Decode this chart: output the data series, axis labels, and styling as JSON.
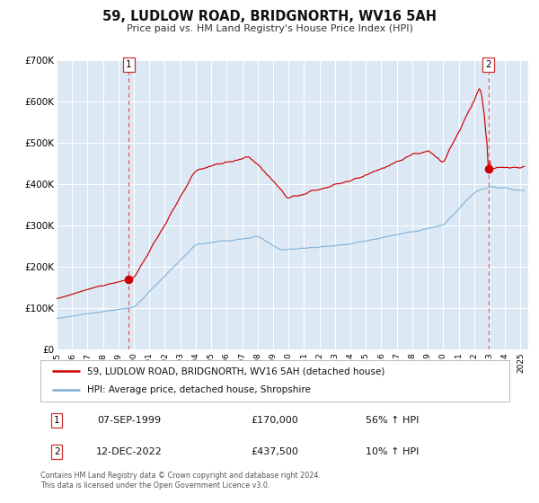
{
  "title": "59, LUDLOW ROAD, BRIDGNORTH, WV16 5AH",
  "subtitle": "Price paid vs. HM Land Registry's House Price Index (HPI)",
  "bg_color": "#dce9f5",
  "fig_bg_color": "#ffffff",
  "red_line_color": "#cc0000",
  "blue_line_color": "#7aaed6",
  "red_dot_color": "#cc0000",
  "vline_color": "#dd5555",
  "sale1_date": "07-SEP-1999",
  "sale1_price": 170000,
  "sale1_label": "56% ↑ HPI",
  "sale2_date": "12-DEC-2022",
  "sale2_price": 437500,
  "sale2_label": "10% ↑ HPI",
  "legend_label1": "59, LUDLOW ROAD, BRIDGNORTH, WV16 5AH (detached house)",
  "legend_label2": "HPI: Average price, detached house, Shropshire",
  "footer1": "Contains HM Land Registry data © Crown copyright and database right 2024.",
  "footer2": "This data is licensed under the Open Government Licence v3.0.",
  "ylim_max": 700000,
  "xlim_min": 1995.0,
  "xlim_max": 2025.5,
  "ytick_values": [
    0,
    100000,
    200000,
    300000,
    400000,
    500000,
    600000,
    700000
  ],
  "ytick_labels": [
    "£0",
    "£100K",
    "£200K",
    "£300K",
    "£400K",
    "£500K",
    "£600K",
    "£700K"
  ],
  "xtick_years": [
    1995,
    1996,
    1997,
    1998,
    1999,
    2000,
    2001,
    2002,
    2003,
    2004,
    2005,
    2006,
    2007,
    2008,
    2009,
    2010,
    2011,
    2012,
    2013,
    2014,
    2015,
    2016,
    2017,
    2018,
    2019,
    2020,
    2021,
    2022,
    2023,
    2024,
    2025
  ]
}
